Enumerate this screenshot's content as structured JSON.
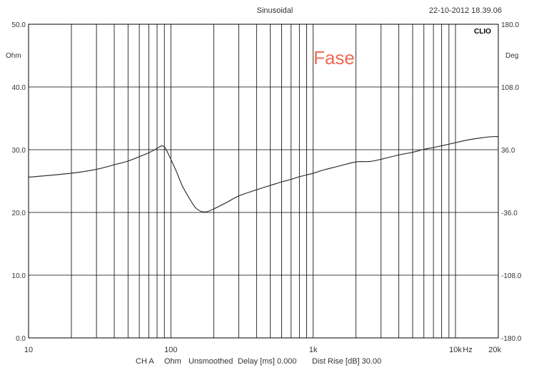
{
  "header": {
    "mode": "Sinusoidal",
    "timestamp": "22-10-2012 18.39.06",
    "logo": "CLIO"
  },
  "annotation": "Fase",
  "footer": {
    "channel": "CH A",
    "unit": "Ohm",
    "smoothing": "Unsmoothed",
    "delay": "Delay [ms] 0.000",
    "dist_rise": "Dist Rise [dB] 30.00"
  },
  "chart_data": {
    "type": "line",
    "x_scale": "log",
    "xlim": [
      10,
      20000
    ],
    "xlabel": "Hz",
    "x_tick_labels": [
      {
        "value": 10,
        "label": "10"
      },
      {
        "value": 100,
        "label": "100"
      },
      {
        "value": 1000,
        "label": "1k"
      },
      {
        "value": 10000,
        "label": "10k"
      },
      {
        "value": 20000,
        "label": "20k"
      }
    ],
    "left_axis": {
      "label": "Ohm",
      "lim": [
        0,
        50
      ],
      "ticks": [
        "0.0",
        "10.0",
        "20.0",
        "30.0",
        "40.0",
        "50.0"
      ]
    },
    "right_axis": {
      "label": "Deg",
      "lim": [
        -180,
        180
      ],
      "ticks": [
        "-180.0",
        "-108.0",
        "-36.0",
        "36.0",
        "108.0",
        "180.0"
      ]
    },
    "grid": true,
    "series": [
      {
        "axis": "right",
        "color": "#333333",
        "x": [
          10,
          20,
          30,
          40,
          50,
          60,
          70,
          80,
          87,
          92,
          100,
          110,
          120,
          135,
          150,
          165,
          180,
          200,
          250,
          300,
          400,
          500,
          600,
          700,
          800,
          1000,
          1200,
          1500,
          2000,
          2500,
          3000,
          4000,
          5000,
          6000,
          7000,
          8000,
          10000,
          12000,
          15000,
          18000,
          20000
        ],
        "y": [
          4.5,
          9,
          13.5,
          18.7,
          23,
          28,
          32.5,
          37.5,
          40.5,
          37,
          25,
          10,
          -5,
          -20,
          -31,
          -35,
          -35,
          -32,
          -24,
          -17,
          -10,
          -5,
          -1,
          2,
          5,
          9,
          13,
          17,
          22,
          22.5,
          25,
          30,
          33,
          36.5,
          38.5,
          40.5,
          44,
          47,
          49.5,
          51,
          51
        ]
      }
    ]
  }
}
